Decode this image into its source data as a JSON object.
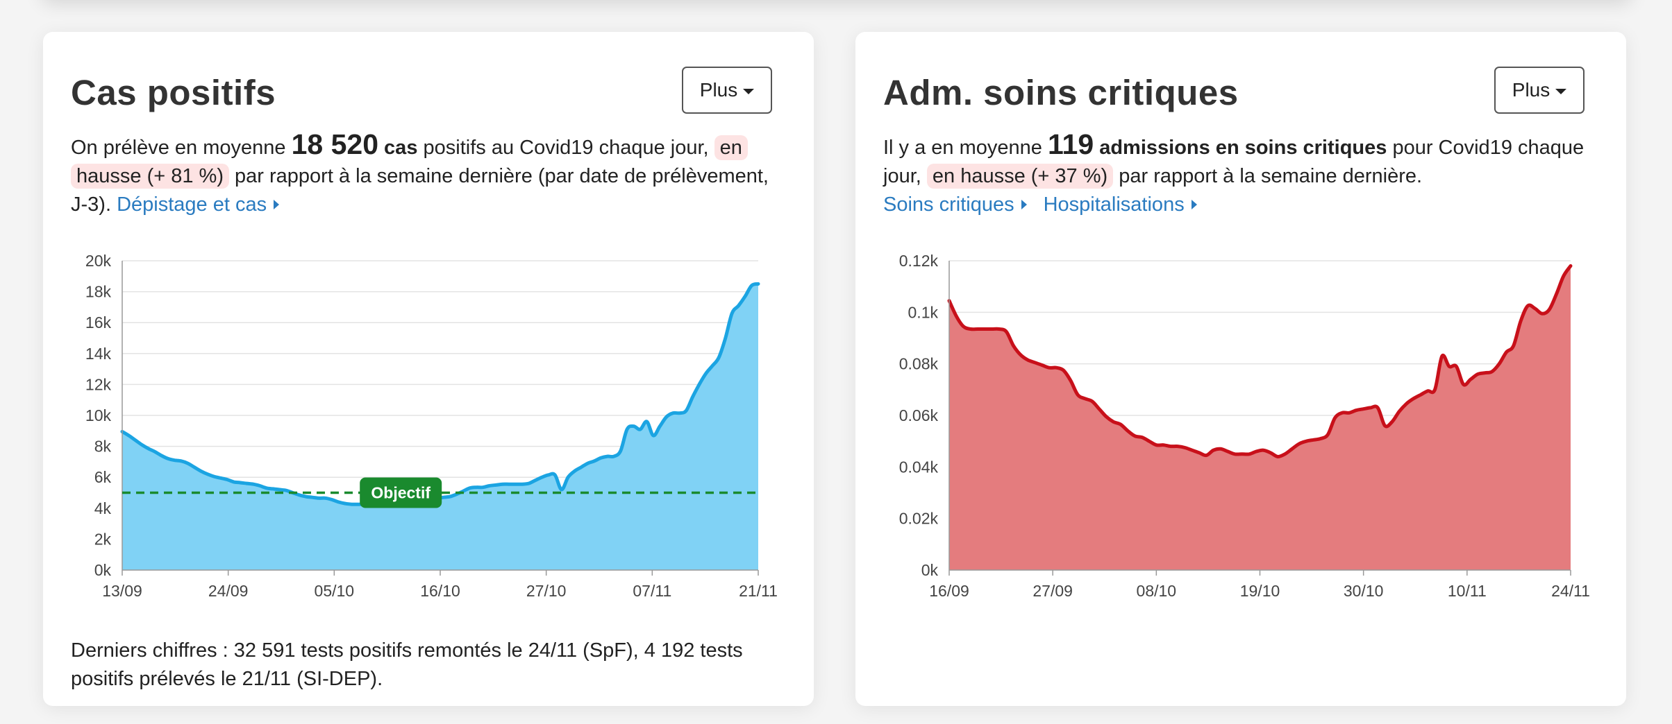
{
  "cards": {
    "cases": {
      "title": "Cas positifs",
      "plus_label": "Plus",
      "desc_prefix": "On prélève en moyenne ",
      "count": "18 520",
      "count_unit": " cas",
      "desc_middle": " positifs au Covid19 chaque jour, ",
      "trend": "en hausse (+ 81 %)",
      "desc_suffix": " par rapport à la semaine dernière (par date de prélèvement, J-3). ",
      "link_label": "Dépistage et cas",
      "footnote": "Derniers chiffres : 32 591 tests positifs remontés le 24/11 (SpF), 4 192 tests positifs prélevés le 21/11 (SI-DEP)."
    },
    "icu": {
      "title": "Adm. soins critiques",
      "plus_label": "Plus",
      "desc_prefix": "Il y a en moyenne ",
      "count": "119",
      "count_unit": " admissions en soins critiques",
      "desc_middle": " pour Covid19 chaque jour, ",
      "trend": "en hausse (+ 37 %)",
      "desc_suffix": " par rapport à la semaine dernière.",
      "link1_label": "Soins critiques",
      "link2_label": "Hospitalisations"
    }
  },
  "colors": {
    "cases_line": "#1ba4e2",
    "cases_fill": "#80d2f5",
    "icu_line": "#c8101a",
    "icu_fill": "#e47c7e",
    "objective": "#1a8a2e",
    "highlight": "#fde3e3",
    "link": "#2a7bc0"
  },
  "chart_data": [
    {
      "type": "area",
      "ylim": [
        0,
        20000
      ],
      "yticks": [
        "0k",
        "2k",
        "4k",
        "6k",
        "8k",
        "10k",
        "12k",
        "14k",
        "16k",
        "18k",
        "20k"
      ],
      "xticks": [
        "13/09",
        "24/09",
        "05/10",
        "16/10",
        "27/10",
        "07/11",
        "21/11"
      ],
      "x_start": "13/09",
      "x_end": "21/11",
      "objective": {
        "label": "Objectif",
        "value": 5000
      },
      "series": [
        {
          "values": [
            8950,
            8700,
            8400,
            8100,
            7850,
            7650,
            7400,
            7200,
            7100,
            7050,
            6900,
            6650,
            6400,
            6200,
            6050,
            5950,
            5850,
            5700,
            5650,
            5600,
            5550,
            5450,
            5300,
            5250,
            5200,
            5150,
            5000,
            4850,
            4750,
            4700,
            4650,
            4650,
            4550,
            4400,
            4300,
            4250,
            4250,
            4250,
            4250,
            4250,
            4250,
            4250,
            4250,
            4300,
            4400,
            4500,
            4550,
            4600,
            4650,
            4700,
            4750,
            4900,
            5100,
            5300,
            5350,
            5350,
            5450,
            5500,
            5550,
            5550,
            5550,
            5550,
            5600,
            5800,
            6000,
            6150,
            6150,
            5200,
            6000,
            6400,
            6650,
            6900,
            7050,
            7250,
            7350,
            7350,
            7700,
            9100,
            9300,
            9100,
            9600,
            8700,
            9300,
            9900,
            10150,
            10150,
            10300,
            11200,
            12000,
            12700,
            13200,
            13750,
            15000,
            16600,
            17100,
            17700,
            18400,
            18500
          ]
        }
      ]
    },
    {
      "type": "area",
      "ylim": [
        0,
        0.12
      ],
      "yticks": [
        "0k",
        "0.02k",
        "0.04k",
        "0.06k",
        "0.08k",
        "0.1k",
        "0.12k"
      ],
      "xticks": [
        "16/09",
        "27/09",
        "08/10",
        "19/10",
        "30/10",
        "10/11",
        "24/11"
      ],
      "x_start": "16/09",
      "x_end": "24/11",
      "series": [
        {
          "values": [
            0.1045,
            0.0985,
            0.0945,
            0.0935,
            0.0935,
            0.0935,
            0.0935,
            0.0935,
            0.0925,
            0.087,
            0.0835,
            0.0815,
            0.0805,
            0.0795,
            0.0785,
            0.0785,
            0.0775,
            0.0735,
            0.068,
            0.0665,
            0.0655,
            0.0625,
            0.0595,
            0.0575,
            0.0565,
            0.054,
            0.052,
            0.0515,
            0.05,
            0.0485,
            0.0485,
            0.048,
            0.048,
            0.0475,
            0.0465,
            0.0455,
            0.0445,
            0.0465,
            0.047,
            0.046,
            0.045,
            0.045,
            0.045,
            0.046,
            0.0465,
            0.0455,
            0.044,
            0.045,
            0.047,
            0.049,
            0.05,
            0.0505,
            0.051,
            0.0525,
            0.059,
            0.061,
            0.061,
            0.062,
            0.0625,
            0.063,
            0.063,
            0.056,
            0.0575,
            0.0615,
            0.0645,
            0.0665,
            0.068,
            0.0695,
            0.07,
            0.083,
            0.079,
            0.079,
            0.072,
            0.074,
            0.076,
            0.0765,
            0.077,
            0.08,
            0.0845,
            0.087,
            0.0965,
            0.1025,
            0.1015,
            0.0995,
            0.101,
            0.107,
            0.114,
            0.118
          ]
        }
      ]
    }
  ]
}
